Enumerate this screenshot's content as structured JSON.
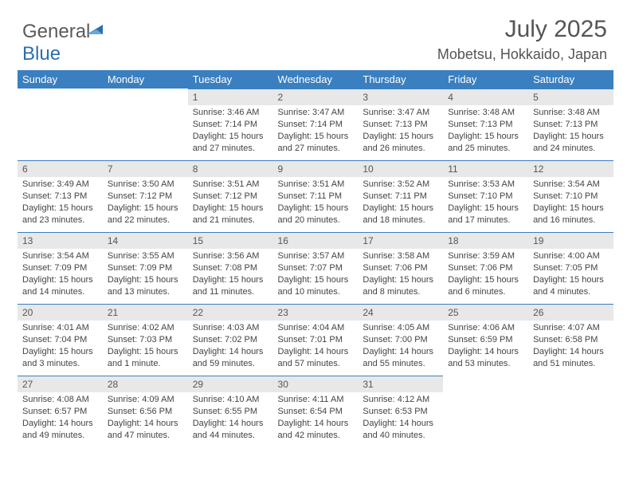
{
  "logo": {
    "text_a": "General",
    "text_b": "Blue"
  },
  "title": "July 2025",
  "location": "Mobetsu, Hokkaido, Japan",
  "colors": {
    "header_bg": "#3a7fc0",
    "header_fg": "#ffffff",
    "daynum_bg": "#e8e8e8",
    "daynum_border": "#3a7fc0",
    "text": "#444444",
    "title_color": "#555555",
    "logo_gray": "#5a5a5a",
    "logo_blue": "#2a6fb0",
    "page_bg": "#ffffff"
  },
  "weekdays": [
    "Sunday",
    "Monday",
    "Tuesday",
    "Wednesday",
    "Thursday",
    "Friday",
    "Saturday"
  ],
  "weeks": [
    [
      null,
      null,
      {
        "n": "1",
        "sr": "3:46 AM",
        "ss": "7:14 PM",
        "dl": "15 hours and 27 minutes."
      },
      {
        "n": "2",
        "sr": "3:47 AM",
        "ss": "7:14 PM",
        "dl": "15 hours and 27 minutes."
      },
      {
        "n": "3",
        "sr": "3:47 AM",
        "ss": "7:13 PM",
        "dl": "15 hours and 26 minutes."
      },
      {
        "n": "4",
        "sr": "3:48 AM",
        "ss": "7:13 PM",
        "dl": "15 hours and 25 minutes."
      },
      {
        "n": "5",
        "sr": "3:48 AM",
        "ss": "7:13 PM",
        "dl": "15 hours and 24 minutes."
      }
    ],
    [
      {
        "n": "6",
        "sr": "3:49 AM",
        "ss": "7:13 PM",
        "dl": "15 hours and 23 minutes."
      },
      {
        "n": "7",
        "sr": "3:50 AM",
        "ss": "7:12 PM",
        "dl": "15 hours and 22 minutes."
      },
      {
        "n": "8",
        "sr": "3:51 AM",
        "ss": "7:12 PM",
        "dl": "15 hours and 21 minutes."
      },
      {
        "n": "9",
        "sr": "3:51 AM",
        "ss": "7:11 PM",
        "dl": "15 hours and 20 minutes."
      },
      {
        "n": "10",
        "sr": "3:52 AM",
        "ss": "7:11 PM",
        "dl": "15 hours and 18 minutes."
      },
      {
        "n": "11",
        "sr": "3:53 AM",
        "ss": "7:10 PM",
        "dl": "15 hours and 17 minutes."
      },
      {
        "n": "12",
        "sr": "3:54 AM",
        "ss": "7:10 PM",
        "dl": "15 hours and 16 minutes."
      }
    ],
    [
      {
        "n": "13",
        "sr": "3:54 AM",
        "ss": "7:09 PM",
        "dl": "15 hours and 14 minutes."
      },
      {
        "n": "14",
        "sr": "3:55 AM",
        "ss": "7:09 PM",
        "dl": "15 hours and 13 minutes."
      },
      {
        "n": "15",
        "sr": "3:56 AM",
        "ss": "7:08 PM",
        "dl": "15 hours and 11 minutes."
      },
      {
        "n": "16",
        "sr": "3:57 AM",
        "ss": "7:07 PM",
        "dl": "15 hours and 10 minutes."
      },
      {
        "n": "17",
        "sr": "3:58 AM",
        "ss": "7:06 PM",
        "dl": "15 hours and 8 minutes."
      },
      {
        "n": "18",
        "sr": "3:59 AM",
        "ss": "7:06 PM",
        "dl": "15 hours and 6 minutes."
      },
      {
        "n": "19",
        "sr": "4:00 AM",
        "ss": "7:05 PM",
        "dl": "15 hours and 4 minutes."
      }
    ],
    [
      {
        "n": "20",
        "sr": "4:01 AM",
        "ss": "7:04 PM",
        "dl": "15 hours and 3 minutes."
      },
      {
        "n": "21",
        "sr": "4:02 AM",
        "ss": "7:03 PM",
        "dl": "15 hours and 1 minute."
      },
      {
        "n": "22",
        "sr": "4:03 AM",
        "ss": "7:02 PM",
        "dl": "14 hours and 59 minutes."
      },
      {
        "n": "23",
        "sr": "4:04 AM",
        "ss": "7:01 PM",
        "dl": "14 hours and 57 minutes."
      },
      {
        "n": "24",
        "sr": "4:05 AM",
        "ss": "7:00 PM",
        "dl": "14 hours and 55 minutes."
      },
      {
        "n": "25",
        "sr": "4:06 AM",
        "ss": "6:59 PM",
        "dl": "14 hours and 53 minutes."
      },
      {
        "n": "26",
        "sr": "4:07 AM",
        "ss": "6:58 PM",
        "dl": "14 hours and 51 minutes."
      }
    ],
    [
      {
        "n": "27",
        "sr": "4:08 AM",
        "ss": "6:57 PM",
        "dl": "14 hours and 49 minutes."
      },
      {
        "n": "28",
        "sr": "4:09 AM",
        "ss": "6:56 PM",
        "dl": "14 hours and 47 minutes."
      },
      {
        "n": "29",
        "sr": "4:10 AM",
        "ss": "6:55 PM",
        "dl": "14 hours and 44 minutes."
      },
      {
        "n": "30",
        "sr": "4:11 AM",
        "ss": "6:54 PM",
        "dl": "14 hours and 42 minutes."
      },
      {
        "n": "31",
        "sr": "4:12 AM",
        "ss": "6:53 PM",
        "dl": "14 hours and 40 minutes."
      },
      null,
      null
    ]
  ],
  "labels": {
    "sunrise": "Sunrise:",
    "sunset": "Sunset:",
    "daylight": "Daylight:"
  }
}
